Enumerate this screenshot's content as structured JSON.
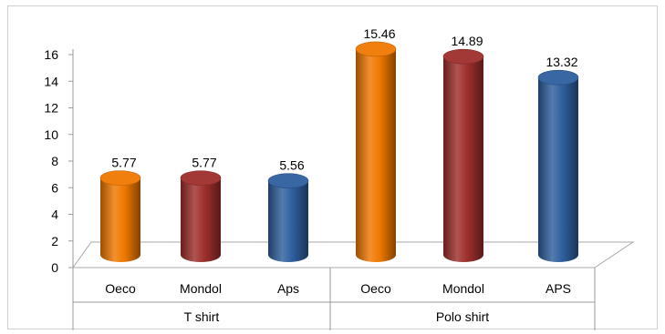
{
  "chart_data": {
    "type": "bar",
    "style": "3d-cylinder",
    "groups": [
      {
        "label": "T shirt",
        "bars": [
          {
            "category": "Oeco",
            "value": 5.77,
            "label": "5.77",
            "color": "#f07800"
          },
          {
            "category": "Mondol",
            "value": 5.77,
            "label": "5.77",
            "color": "#9e2f2c"
          },
          {
            "category": "Aps",
            "value": 5.56,
            "label": "5.56",
            "color": "#2f5f9e"
          }
        ]
      },
      {
        "label": "Polo shirt",
        "bars": [
          {
            "category": "Oeco",
            "value": 15.46,
            "label": "15.46",
            "color": "#f07800"
          },
          {
            "category": "Mondol",
            "value": 14.89,
            "label": "14.89",
            "color": "#9e2f2c"
          },
          {
            "category": "APS",
            "value": 13.32,
            "label": "13.32",
            "color": "#2f5f9e"
          }
        ]
      }
    ],
    "y_ticks": [
      "0",
      "2",
      "4",
      "6",
      "8",
      "10",
      "12",
      "14",
      "16"
    ],
    "ylim": [
      0,
      16
    ],
    "grid": false,
    "legend": "none",
    "title": "",
    "xlabel": "",
    "ylabel": ""
  }
}
